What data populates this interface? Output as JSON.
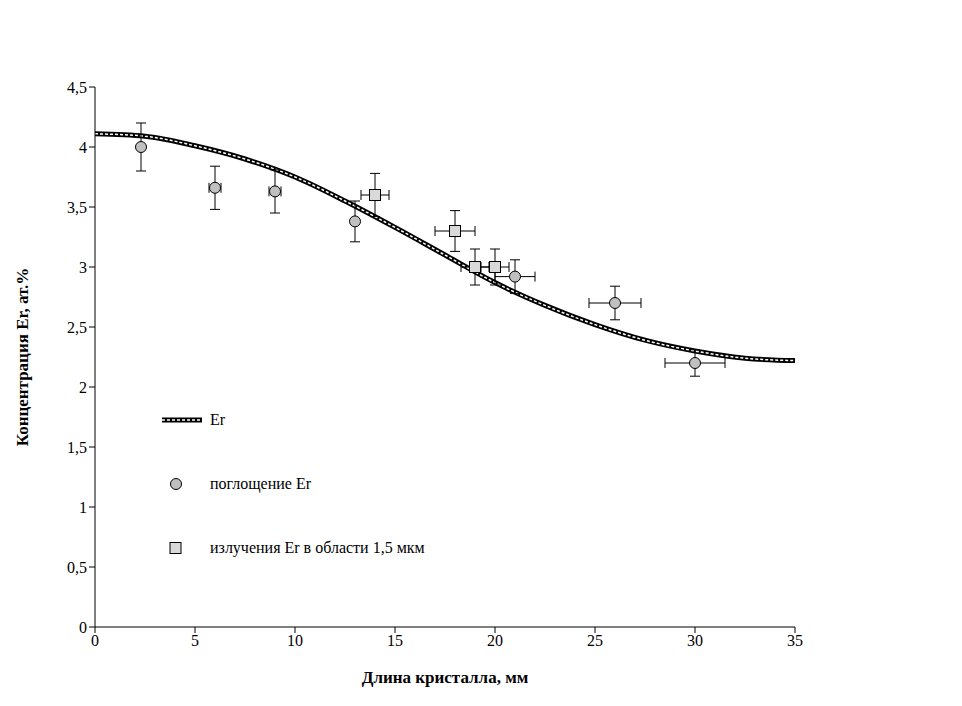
{
  "chart_data": {
    "type": "scatter",
    "xlabel": "Длина кристалла, мм",
    "ylabel": "Концентрация Er, ат.%",
    "xlim": [
      0,
      35
    ],
    "xticks": [
      0,
      5,
      10,
      15,
      20,
      25,
      30,
      35
    ],
    "ylim": [
      0,
      4.5
    ],
    "yticks": [
      0,
      {
        "value": 0.5,
        "label": "0,5"
      },
      1,
      {
        "value": 1.5,
        "label": "1,5"
      },
      2,
      {
        "value": 2.5,
        "label": "2,5"
      },
      3,
      {
        "value": 3.5,
        "label": "3,5"
      },
      4,
      {
        "value": 4.5,
        "label": "4,5"
      }
    ],
    "grid": false,
    "legend": "left",
    "series": [
      {
        "name": "Er",
        "type": "line",
        "color": "#000000",
        "line_style": "dashed",
        "x": [
          0,
          2.5,
          5,
          7.5,
          10,
          12.5,
          15,
          17.5,
          20,
          22.5,
          25,
          27.5,
          30,
          32.5,
          35
        ],
        "values": [
          4.11,
          4.09,
          4.01,
          3.9,
          3.75,
          3.55,
          3.33,
          3.1,
          2.87,
          2.68,
          2.52,
          2.39,
          2.3,
          2.24,
          2.22
        ]
      },
      {
        "name": "поглощение Er",
        "type": "scatter",
        "marker": "circle",
        "color": "#c0c0c0",
        "x": [
          2.3,
          6,
          9,
          13,
          21,
          26,
          30
        ],
        "values": [
          4.0,
          3.66,
          3.63,
          3.38,
          2.92,
          2.7,
          2.2
        ],
        "y_err": [
          0.2,
          0.18,
          0.18,
          0.17,
          0.14,
          0.14,
          0.11
        ],
        "x_err": [
          0,
          0.3,
          0.3,
          0,
          1,
          1.3,
          1.5
        ]
      },
      {
        "name": "излучения Er в области 1,5 мкм",
        "type": "scatter",
        "marker": "square",
        "color": "#d9d9d9",
        "x": [
          14,
          18,
          19,
          20
        ],
        "values": [
          3.6,
          3.3,
          3.0,
          3.0
        ],
        "y_err": [
          0.18,
          0.17,
          0.15,
          0.15
        ],
        "x_err": [
          0.7,
          1,
          0.7,
          0.7
        ]
      }
    ]
  }
}
